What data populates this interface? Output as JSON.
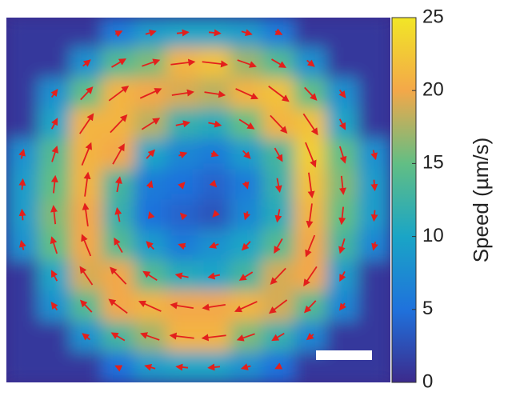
{
  "chart_data": {
    "type": "heatmap",
    "colorbar_label": "Speed (µm/s)",
    "clim": [
      0,
      25
    ],
    "cticks": [
      0,
      5,
      10,
      15,
      20,
      25
    ],
    "colormap": [
      "#3c2a8c",
      "#1f72dc",
      "#1aa5c6",
      "#62be84",
      "#f3a849",
      "#f2e626"
    ],
    "arrow_color": "#e3201c",
    "values": [
      [
        1,
        1,
        1,
        6,
        9,
        10,
        10,
        9,
        6,
        1,
        1,
        1
      ],
      [
        1,
        1,
        8,
        14,
        16,
        21,
        22,
        17,
        14,
        8,
        1,
        1
      ],
      [
        1,
        8,
        15,
        21,
        20,
        19,
        18,
        21,
        22,
        15,
        8,
        1
      ],
      [
        1,
        10,
        21,
        21,
        18,
        12,
        11,
        15,
        21,
        22,
        10,
        1
      ],
      [
        8,
        14,
        21,
        20,
        10,
        7,
        6,
        9,
        13,
        23,
        15,
        8
      ],
      [
        9,
        15,
        21,
        13,
        6,
        5,
        4,
        6,
        12,
        22,
        16,
        9
      ],
      [
        9,
        16,
        20,
        12,
        5,
        4,
        3,
        7,
        11,
        21,
        15,
        9
      ],
      [
        8,
        15,
        20,
        14,
        9,
        6,
        8,
        10,
        14,
        20,
        13,
        7
      ],
      [
        1,
        10,
        19,
        20,
        14,
        11,
        10,
        13,
        19,
        20,
        9,
        1
      ],
      [
        1,
        8,
        14,
        20,
        21,
        20,
        20,
        21,
        19,
        14,
        7,
        1
      ],
      [
        1,
        1,
        8,
        13,
        17,
        21,
        21,
        16,
        12,
        7,
        1,
        1
      ],
      [
        1,
        1,
        1,
        5,
        9,
        10,
        10,
        8,
        5,
        1,
        1,
        1
      ]
    ]
  }
}
